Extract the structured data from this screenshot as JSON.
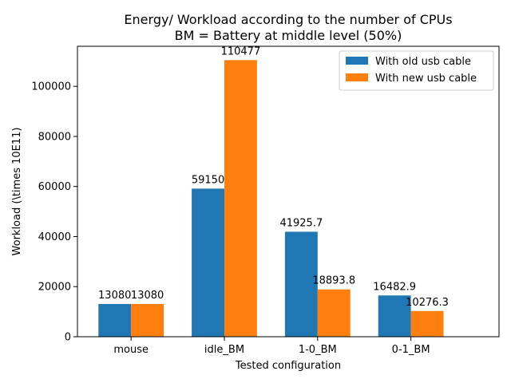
{
  "chart_data": {
    "type": "bar",
    "title": "Energy/ Workload according to the number of CPUs",
    "subtitle": "BM = Battery at middle level (50%)",
    "xlabel": "Tested configuration",
    "ylabel": "Workload (\\times 10E11)",
    "categories": [
      "mouse",
      "idle_BM",
      "1-0_BM",
      "0-1_BM"
    ],
    "series": [
      {
        "name": "With old usb cable",
        "color": "#1f77b4",
        "values": [
          13080,
          59150,
          41925.7,
          16482.9
        ],
        "labels": [
          "13080",
          "59150",
          "41925.7",
          "16482.9"
        ]
      },
      {
        "name": "With new usb cable",
        "color": "#ff7f0e",
        "values": [
          13080,
          110477,
          18893.8,
          10276.3
        ],
        "labels": [
          "13080",
          "110477",
          "18893.8",
          "10276.3"
        ]
      }
    ],
    "ylim": [
      0,
      116000
    ],
    "yticks": [
      0,
      20000,
      40000,
      60000,
      80000,
      100000
    ],
    "ytick_labels": [
      "0",
      "20000",
      "40000",
      "60000",
      "80000",
      "100000"
    ],
    "grid": false,
    "legend_position": "top-right"
  }
}
